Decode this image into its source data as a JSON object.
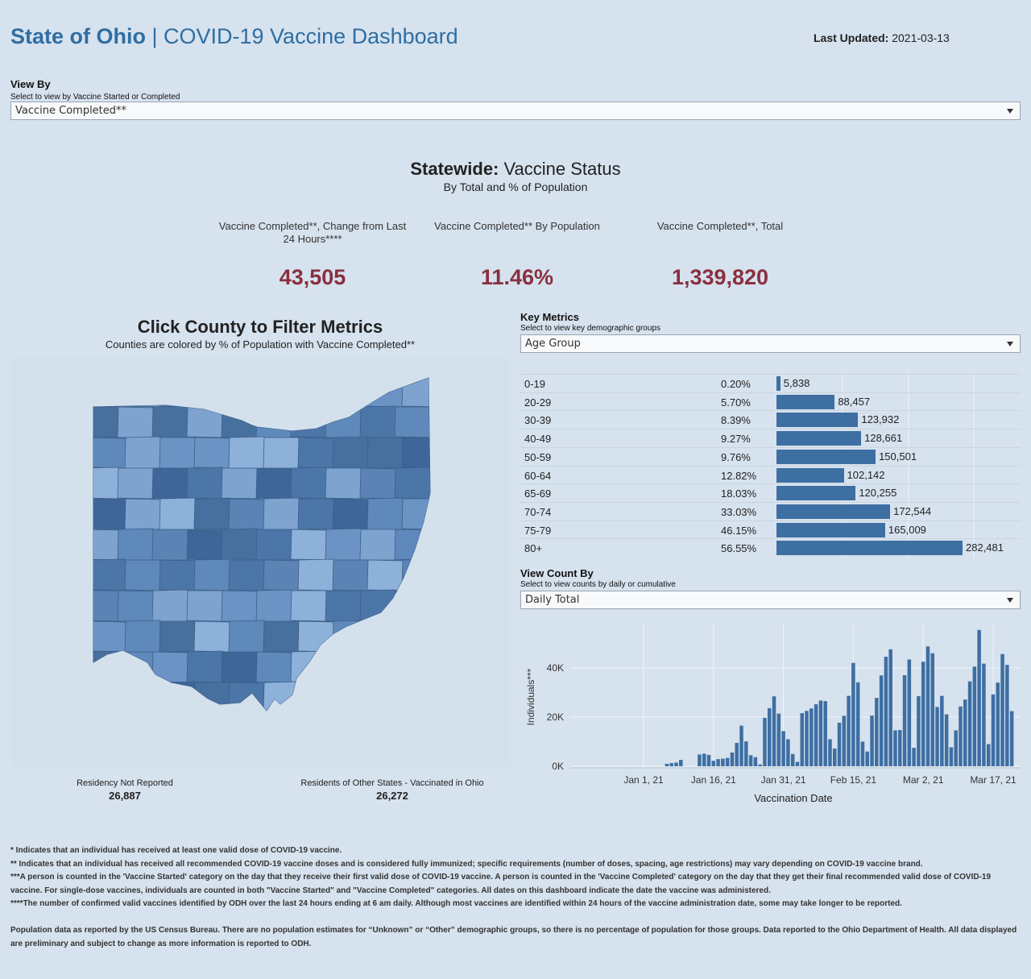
{
  "header": {
    "title_bold": "State of Ohio",
    "title_rest": " | COVID-19 Vaccine Dashboard",
    "updated_label": "Last Updated:",
    "updated_value": "2021-03-13"
  },
  "view_by": {
    "label": "View By",
    "hint": "Select to view by Vaccine Started or Completed",
    "value": "Vaccine Completed**"
  },
  "statewide": {
    "title_bold": "Statewide:",
    "title_rest": " Vaccine Status",
    "subtitle": "By Total and % of Population",
    "kpis": [
      {
        "label": "Vaccine Completed**, Change from Last 24 Hours****",
        "value": "43,505"
      },
      {
        "label": "Vaccine Completed** By Population",
        "value": "11.46%"
      },
      {
        "label": "Vaccine Completed**, Total",
        "value": "1,339,820"
      }
    ]
  },
  "map": {
    "title": "Click County to Filter Metrics",
    "subtitle": "Counties are colored by % of Population with Vaccine Completed**",
    "residency_label": "Residency Not Reported",
    "residency_value": "26,887",
    "other_states_label": "Residents of Other States - Vaccinated in Ohio",
    "other_states_value": "26,272"
  },
  "key_metrics": {
    "label": "Key Metrics",
    "hint": "Select to view key demographic groups",
    "value": "Age Group"
  },
  "view_count": {
    "label": "View Count By",
    "hint": "Select to view counts by daily or cumulative",
    "value": "Daily Total"
  },
  "colors": {
    "bar": "#3e6fa3",
    "kpi": "#8a2f3f",
    "title": "#2f6ea3"
  },
  "chart_data": [
    {
      "type": "bar",
      "orientation": "horizontal",
      "title": "Key Metrics - Age Group",
      "categories": [
        "0-19",
        "20-29",
        "30-39",
        "40-49",
        "50-59",
        "60-64",
        "65-69",
        "70-74",
        "75-79",
        "80+"
      ],
      "percents": [
        "0.20%",
        "5.70%",
        "8.39%",
        "9.27%",
        "9.76%",
        "12.82%",
        "18.03%",
        "33.03%",
        "46.15%",
        "56.55%"
      ],
      "values": [
        5838,
        88457,
        123932,
        128661,
        150501,
        102142,
        120255,
        172544,
        165009,
        282481
      ],
      "value_labels": [
        "5,838",
        "88,457",
        "123,932",
        "128,661",
        "150,501",
        "102,142",
        "120,255",
        "172,544",
        "165,009",
        "282,481"
      ],
      "xlim": [
        0,
        282481
      ]
    },
    {
      "type": "bar",
      "title": "Daily Total",
      "xlabel": "Vaccination Date",
      "ylabel": "Individuals***",
      "ylim": [
        0,
        55000
      ],
      "yticks": [
        0,
        20000,
        40000
      ],
      "ytick_labels": [
        "0K",
        "20K",
        "40K"
      ],
      "xtick_labels": [
        "Jan 1, 21",
        "Jan 16, 21",
        "Jan 31, 21",
        "Feb 15, 21",
        "Mar 2, 21",
        "Mar 17, 21"
      ],
      "x_start": "2020-12-15",
      "x_day_offsets": [
        15,
        30,
        45,
        60,
        75,
        90
      ],
      "first_bar_day": 20,
      "values": [
        1000,
        1300,
        1500,
        2600,
        0,
        0,
        0,
        4800,
        5100,
        4600,
        2200,
        2900,
        3100,
        3400,
        5600,
        9500,
        16500,
        10100,
        4500,
        3700,
        700,
        19700,
        23600,
        28400,
        21400,
        14300,
        11000,
        5000,
        1800,
        21600,
        22500,
        23500,
        25200,
        26700,
        26500,
        11000,
        7200,
        17700,
        20500,
        28600,
        42000,
        34100,
        10000,
        6000,
        20600,
        27800,
        36900,
        44500,
        47500,
        14600,
        14700,
        37000,
        43400,
        7500,
        28500,
        42500,
        48700,
        45900,
        24100,
        28600,
        21100,
        7700,
        14600,
        24300,
        27100,
        34500,
        40500,
        55400,
        41700,
        9000,
        29200,
        34000,
        45600,
        41200,
        22400
      ]
    }
  ],
  "footnotes": [
    "* Indicates that an individual has received at least one valid dose of COVID-19 vaccine.",
    "** Indicates that an individual has received all recommended COVID-19 vaccine doses and is considered fully immunized; specific requirements (number of doses, spacing, age restrictions) may vary depending on COVID-19 vaccine brand.",
    "***A person is counted in the 'Vaccine Started' category on the day that they receive their first valid dose of COVID-19 vaccine.  A person is counted in the 'Vaccine Completed' category on the day that they get their final recommended valid dose of COVID-19 vaccine. For single-dose vaccines, individuals are counted in both \"Vaccine Started\" and \"Vaccine Completed\" categories. All dates on this dashboard indicate the date the vaccine was administered.",
    "****The number of confirmed valid vaccines identified by ODH over the last 24 hours ending at 6 am daily. Although most vaccines are identified within 24 hours of the vaccine administration date, some may take longer to be reported.",
    "Population data as reported by the US Census Bureau. There are no population estimates for “Unknown” or “Other” demographic groups, so there is no percentage of population for those groups.  Data reported to the Ohio Department of Health.  All data displayed are preliminary and subject to change as more information is reported to ODH."
  ]
}
